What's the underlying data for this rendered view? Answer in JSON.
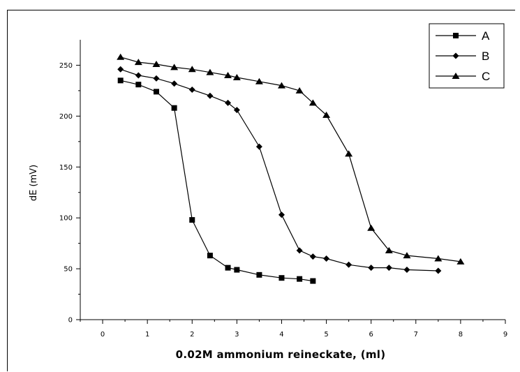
{
  "chart_data": {
    "type": "line",
    "title": "",
    "xlabel": "0.02M ammonium reineckate, (ml)",
    "ylabel": "dE (mV)",
    "xlim": [
      -0.5,
      9
    ],
    "ylim": [
      0,
      275
    ],
    "xticks": [
      0,
      1,
      2,
      3,
      4,
      5,
      6,
      7,
      8,
      9
    ],
    "yticks": [
      0,
      50,
      100,
      150,
      200,
      250
    ],
    "grid": false,
    "legend_position": "top-right",
    "series": [
      {
        "name": "A",
        "marker": "square",
        "x": [
          0.4,
          0.8,
          1.2,
          1.6,
          2.0,
          2.4,
          2.8,
          3.0,
          3.5,
          4.0,
          4.4,
          4.7
        ],
        "y": [
          235,
          231,
          224,
          208,
          98,
          63,
          51,
          49,
          44,
          41,
          40,
          38
        ]
      },
      {
        "name": "B",
        "marker": "diamond",
        "x": [
          0.4,
          0.8,
          1.2,
          1.6,
          2.0,
          2.4,
          2.8,
          3.0,
          3.5,
          4.0,
          4.4,
          4.7,
          5.0,
          5.5,
          6.0,
          6.4,
          6.8,
          7.5
        ],
        "y": [
          246,
          240,
          237,
          232,
          226,
          220,
          213,
          206,
          170,
          103,
          68,
          62,
          60,
          54,
          51,
          51,
          49,
          48
        ]
      },
      {
        "name": "C",
        "marker": "triangle",
        "x": [
          0.4,
          0.8,
          1.2,
          1.6,
          2.0,
          2.4,
          2.8,
          3.0,
          3.5,
          4.0,
          4.4,
          4.7,
          5.0,
          5.5,
          6.0,
          6.4,
          6.8,
          7.5,
          8.0
        ],
        "y": [
          258,
          253,
          251,
          248,
          246,
          243,
          240,
          238,
          234,
          230,
          225,
          213,
          201,
          163,
          90,
          68,
          63,
          60,
          57
        ]
      }
    ]
  }
}
